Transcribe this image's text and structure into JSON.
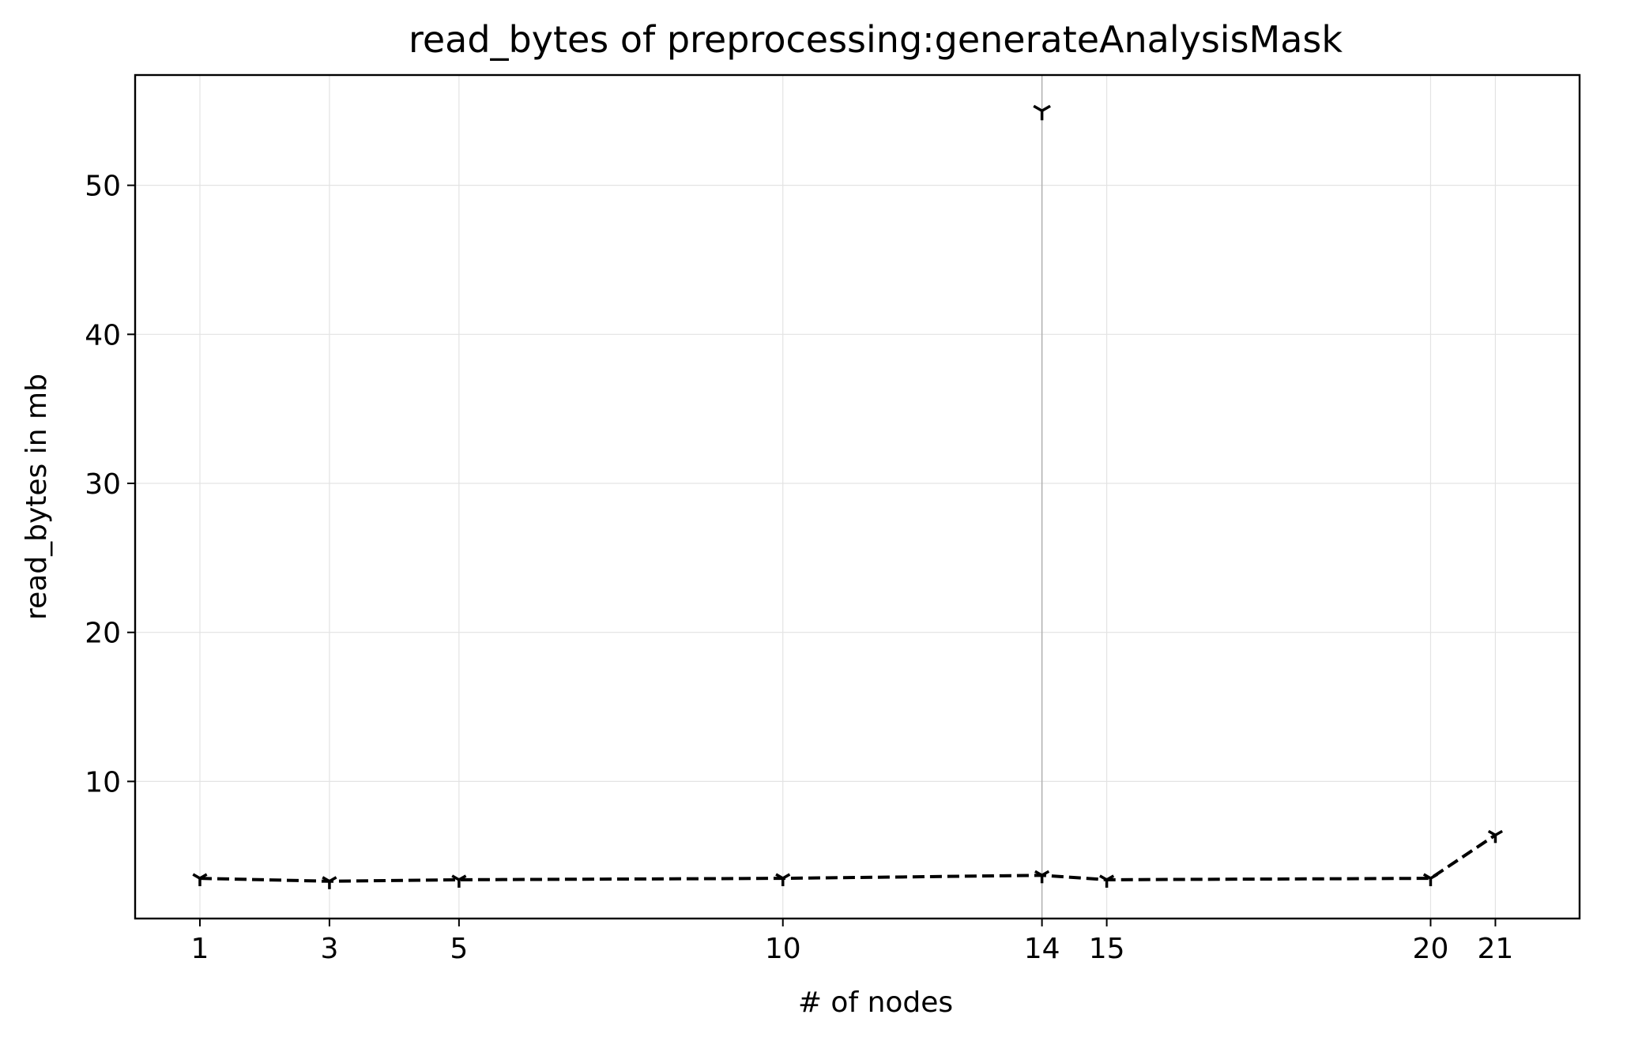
{
  "chart_data": {
    "type": "line",
    "title": "read_bytes of preprocessing:generateAnalysisMask",
    "xlabel": "# of nodes",
    "ylabel": "read_bytes in mb",
    "x": [
      1,
      3,
      5,
      10,
      14,
      15,
      20,
      21
    ],
    "x_tick_labels": [
      "1",
      "3",
      "5",
      "10",
      "14",
      "15",
      "20",
      "21"
    ],
    "xlim": [
      0,
      22.3
    ],
    "ylim": [
      0.8,
      57.4
    ],
    "y_ticks": [
      10,
      20,
      30,
      40,
      50
    ],
    "y_tick_labels": [
      "10",
      "20",
      "30",
      "40",
      "50"
    ],
    "grid": true,
    "series": [
      {
        "values": [
          3.5,
          3.3,
          3.4,
          3.5,
          3.7,
          3.4,
          3.5,
          6.4
        ],
        "line_style": "dashed",
        "color": "#000000",
        "marker": "tri_down"
      }
    ],
    "outlier": {
      "x": 14,
      "y": 55.0,
      "marker": "tri_down"
    },
    "highlight_vline_x": 14
  }
}
